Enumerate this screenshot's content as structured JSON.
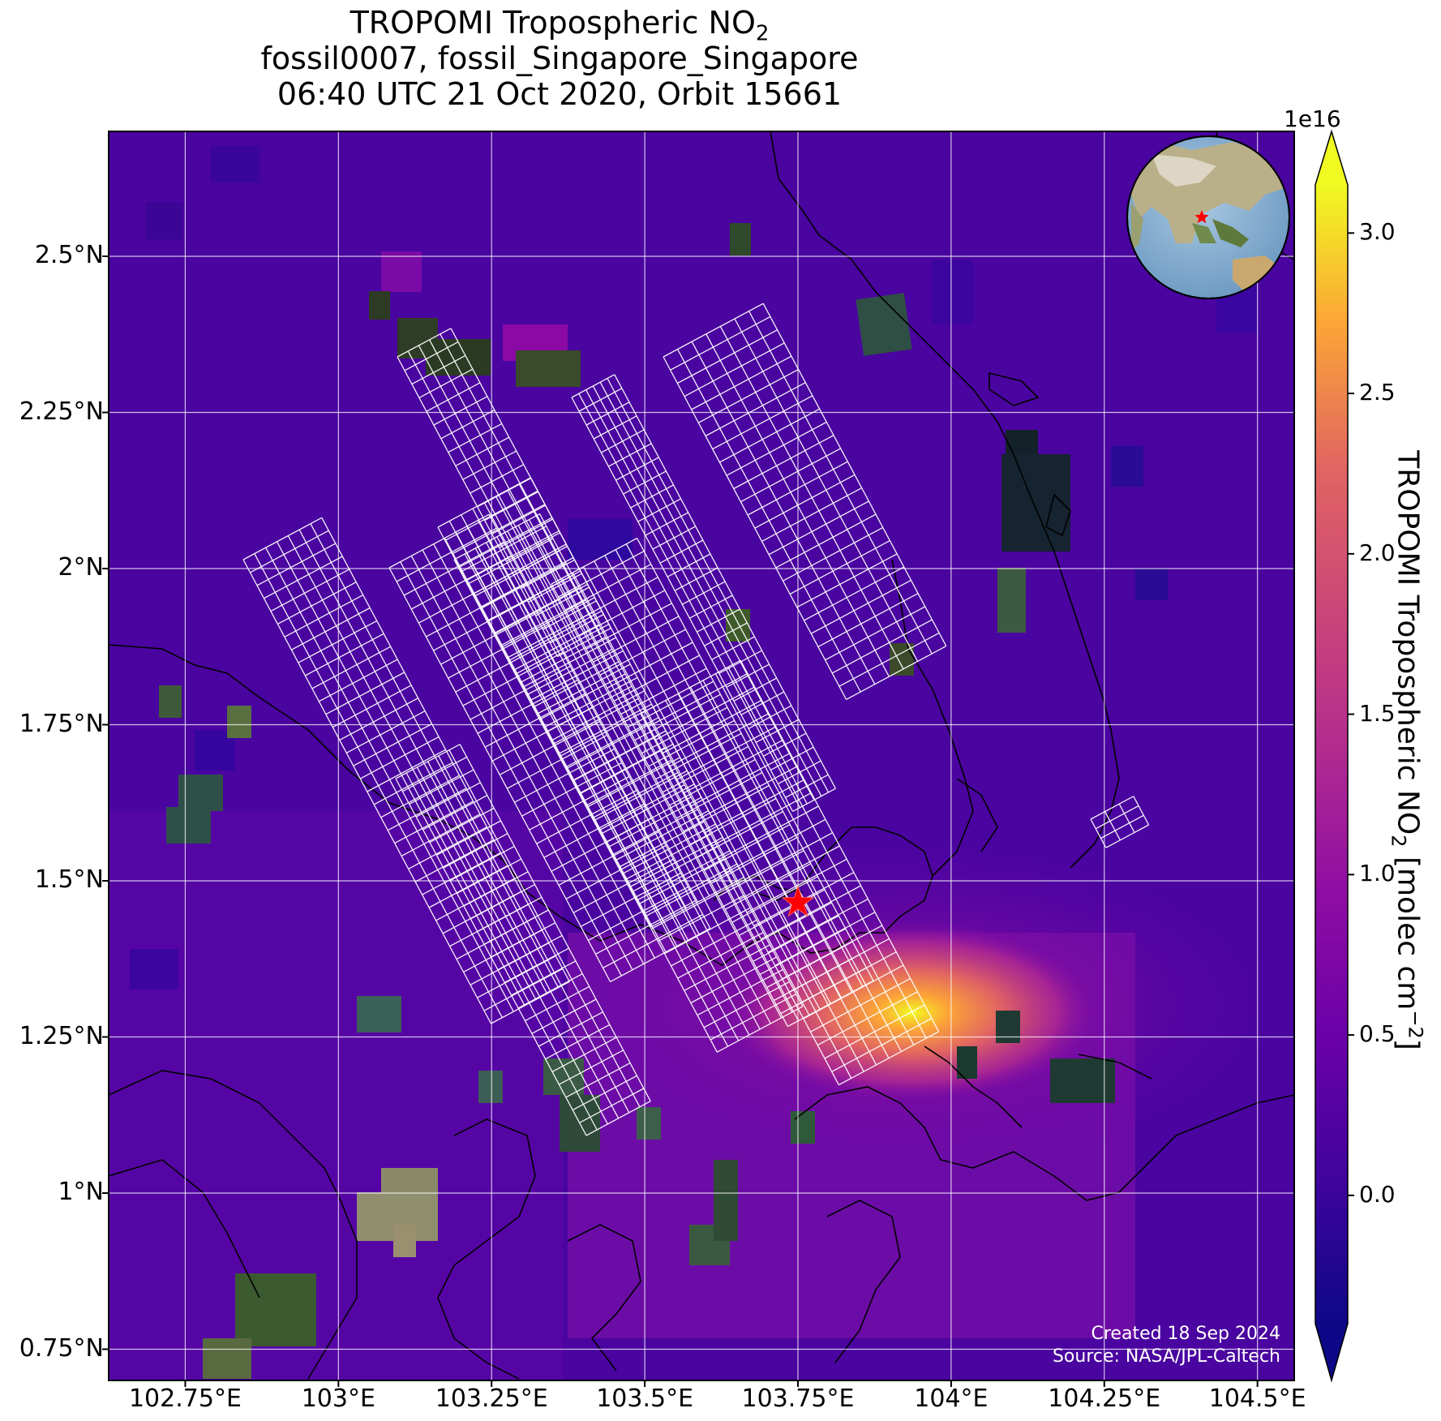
{
  "title": {
    "line1_prefix": "TROPOMI Tropospheric NO",
    "line1_sub": "2",
    "line2": "fossil0007, fossil_Singapore_Singapore",
    "line3": "06:40 UTC 21 Oct 2020, Orbit 15661"
  },
  "map": {
    "lon_range": [
      102.625,
      104.56
    ],
    "lat_range": [
      0.7,
      2.7
    ],
    "x_ticks": [
      {
        "value": 102.75,
        "label": "102.75°E"
      },
      {
        "value": 103.0,
        "label": "103°E"
      },
      {
        "value": 103.25,
        "label": "103.25°E"
      },
      {
        "value": 103.5,
        "label": "103.5°E"
      },
      {
        "value": 103.75,
        "label": "103.75°E"
      },
      {
        "value": 104.0,
        "label": "104°E"
      },
      {
        "value": 104.25,
        "label": "104.25°E"
      },
      {
        "value": 104.5,
        "label": "104.5°E"
      }
    ],
    "y_ticks": [
      {
        "value": 0.75,
        "label": "0.75°N"
      },
      {
        "value": 1.0,
        "label": "1°N"
      },
      {
        "value": 1.25,
        "label": "1.25°N"
      },
      {
        "value": 1.5,
        "label": "1.5°N"
      },
      {
        "value": 1.75,
        "label": "1.75°N"
      },
      {
        "value": 2.0,
        "label": "2°N"
      },
      {
        "value": 2.25,
        "label": "2.25°N"
      },
      {
        "value": 2.5,
        "label": "2.5°N"
      }
    ],
    "grid": true,
    "target_marker": {
      "lon": 103.75,
      "lat": 1.465,
      "symbol": "red-star-icon"
    },
    "hotspot_center": {
      "lon": 103.97,
      "lat": 1.29
    },
    "colors": {
      "low": "#0d0887",
      "mid": "#9c179e",
      "high": "#fdca26",
      "max": "#f0f921",
      "marker": "#ff0000"
    },
    "inset_globe": {
      "name": "globe-inset",
      "marker": "red-star-icon"
    }
  },
  "colorbar": {
    "exponent": "1e16",
    "min": -0.4,
    "max": 3.15,
    "ticks": [
      "0.0",
      "0.5",
      "1.0",
      "1.5",
      "2.0",
      "2.5",
      "3.0"
    ],
    "label_prefix": "TROPOMI Tropospheric NO",
    "label_sub": "2",
    "label_mid": " [molec cm",
    "label_sup": "−2",
    "label_end": "]",
    "colormap": "plasma",
    "extend": "both"
  },
  "credits": {
    "created": "Created 18 Sep 2024",
    "source": "Source: NASA/JPL-Caltech"
  }
}
